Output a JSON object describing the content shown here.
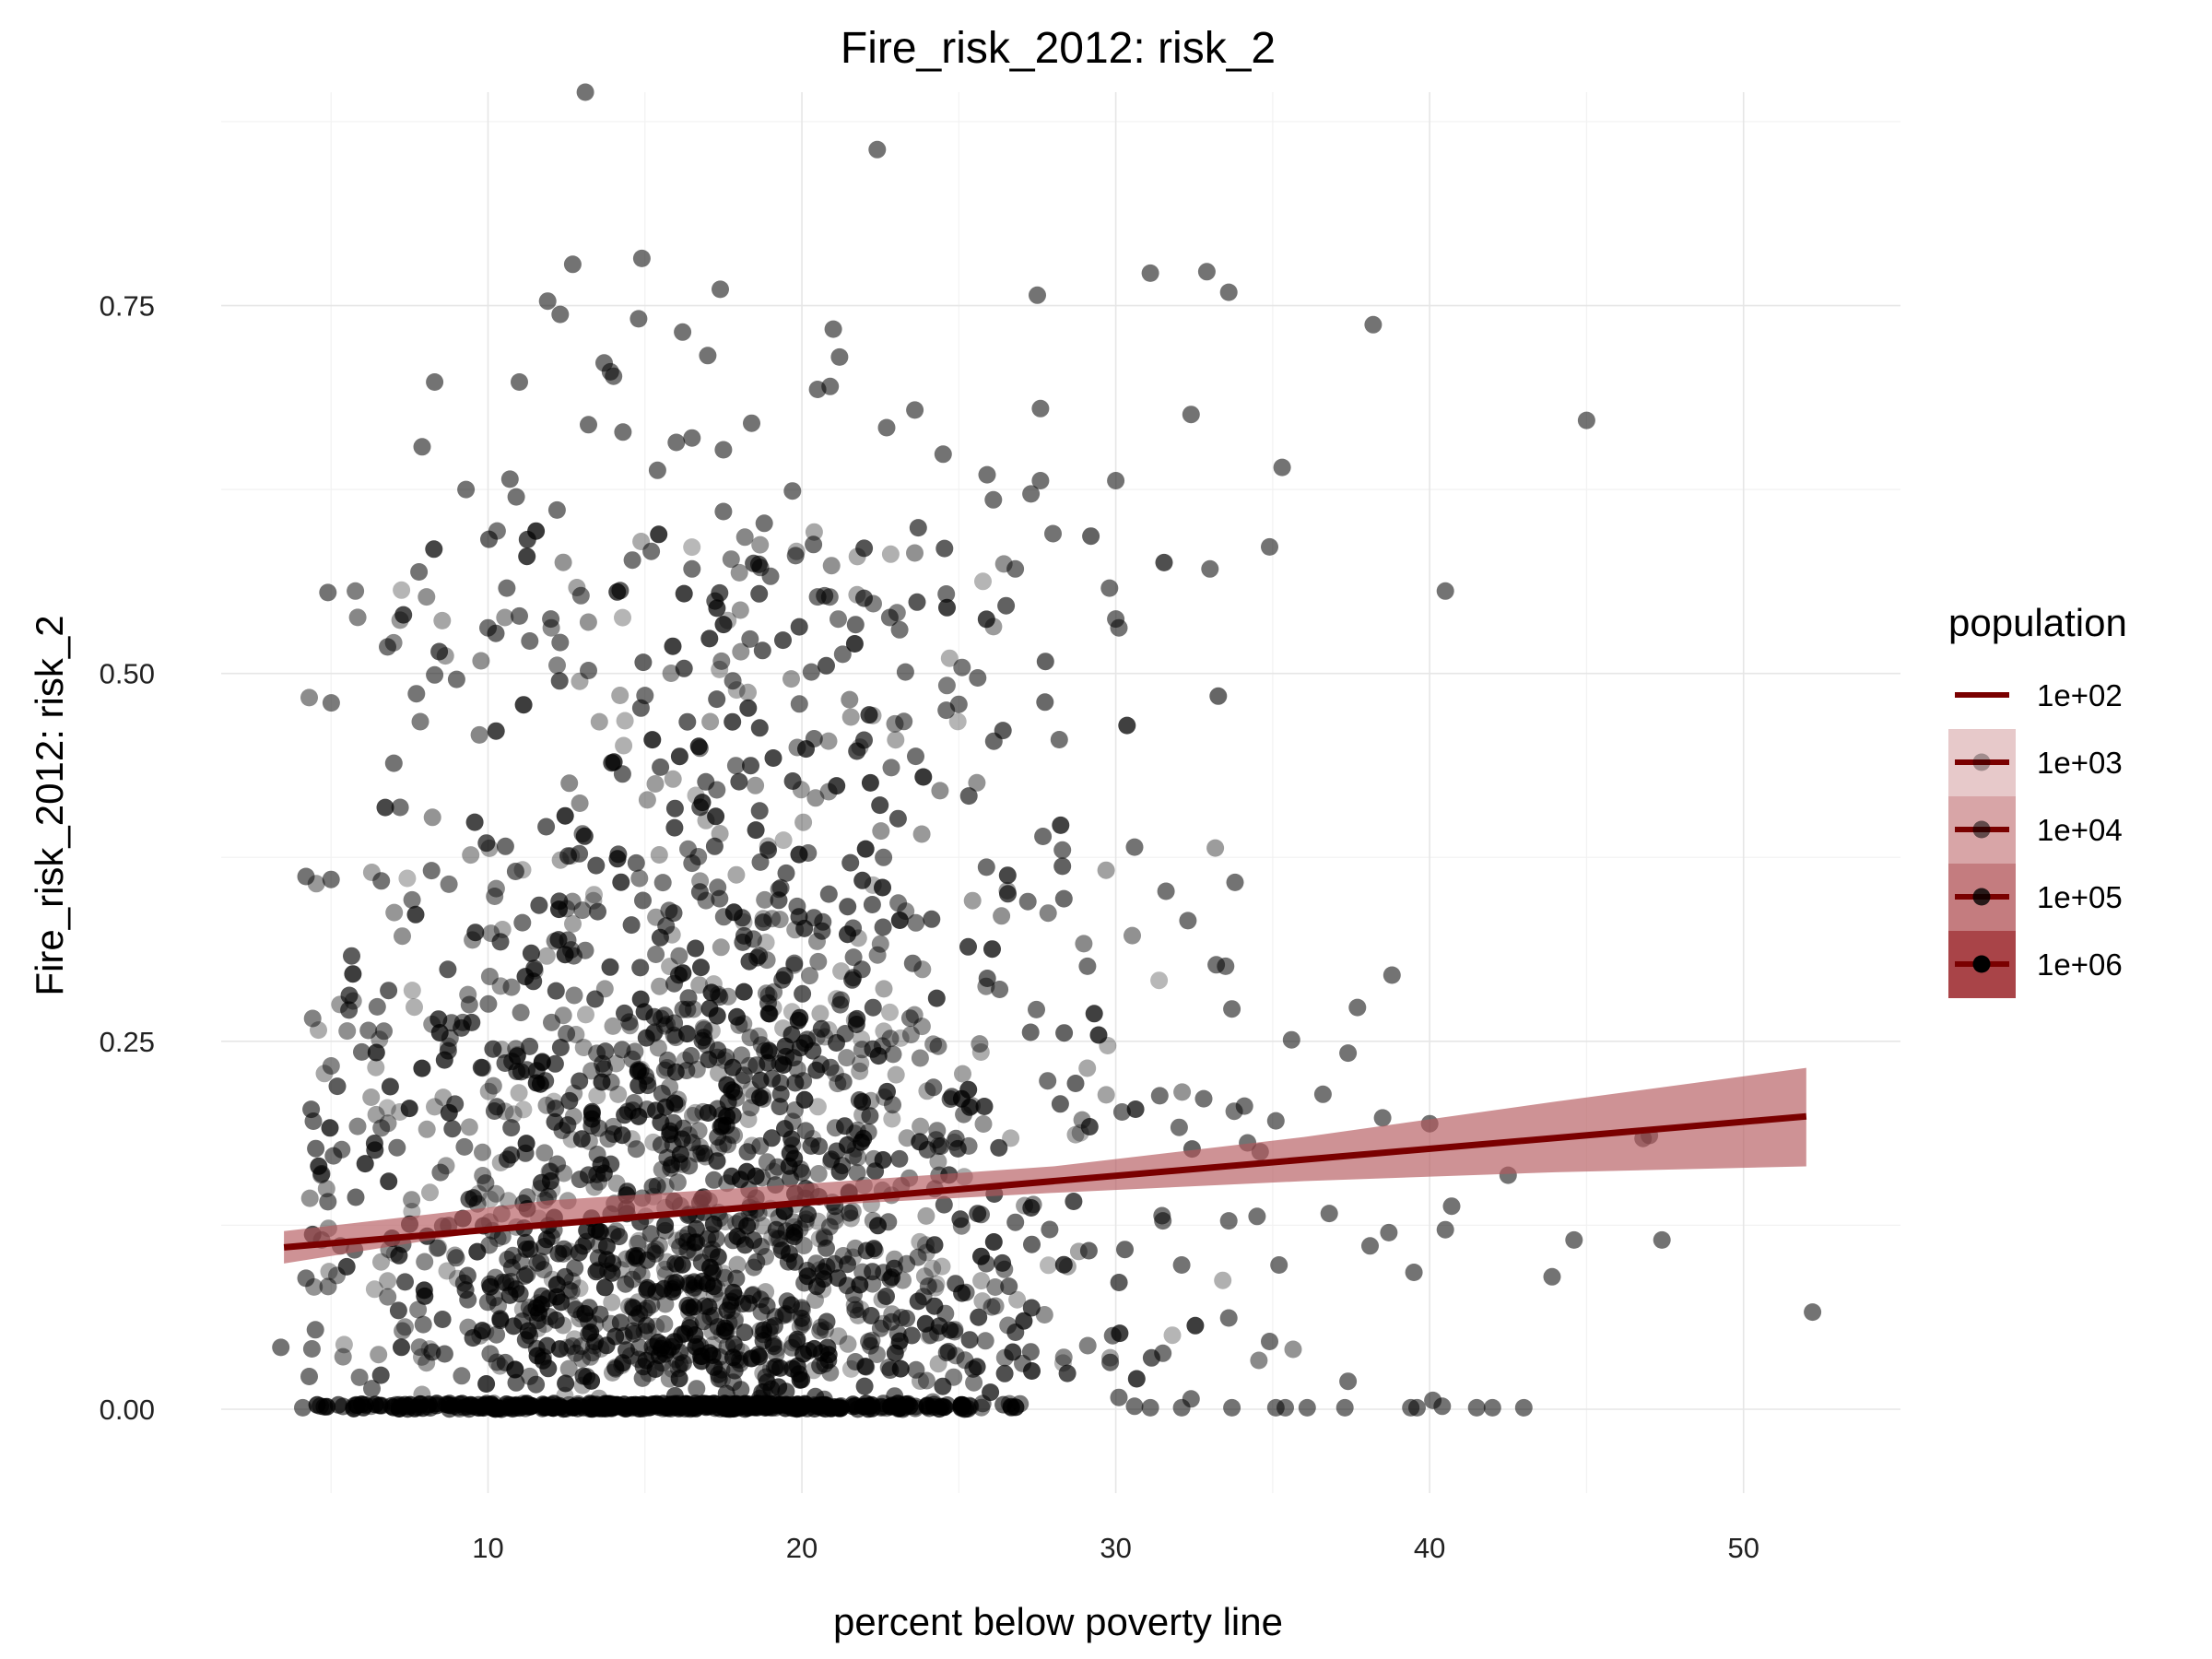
{
  "chart_data": {
    "type": "scatter",
    "title": "Fire_risk_2012: risk_2",
    "xlabel": "percent below poverty line",
    "ylabel": "Fire_risk_2012: risk_2",
    "xlim": [
      1.5,
      55
    ],
    "ylim": [
      -0.057,
      0.895
    ],
    "x_ticks": [
      10,
      20,
      30,
      40,
      50
    ],
    "x_tick_labels": [
      "10",
      "20",
      "30",
      "40",
      "50"
    ],
    "y_ticks": [
      0,
      0.25,
      0.5,
      0.75
    ],
    "y_tick_labels": [
      "0.00",
      "0.25",
      "0.50",
      "0.75"
    ],
    "grid": true,
    "legend": {
      "title": "population",
      "position": "right",
      "entries": [
        "1e+02",
        "1e+03",
        "1e+04",
        "1e+05",
        "1e+06"
      ]
    },
    "colors": {
      "points": "#000000",
      "fit_line": "#7a0000",
      "ribbon": "#b4585c"
    },
    "points_sample": [
      [
        13.1,
        0.895
      ],
      [
        22.4,
        0.856
      ],
      [
        12.7,
        0.778
      ],
      [
        14.9,
        0.782
      ],
      [
        17.4,
        0.761
      ],
      [
        27.5,
        0.757
      ],
      [
        31.1,
        0.772
      ],
      [
        32.9,
        0.773
      ],
      [
        33.6,
        0.759
      ],
      [
        38.2,
        0.737
      ],
      [
        11.9,
        0.753
      ],
      [
        12.3,
        0.744
      ],
      [
        14.8,
        0.741
      ],
      [
        16.2,
        0.732
      ],
      [
        17.0,
        0.716
      ],
      [
        21.0,
        0.734
      ],
      [
        21.2,
        0.715
      ],
      [
        13.7,
        0.711
      ],
      [
        13.9,
        0.705
      ],
      [
        14.0,
        0.702
      ],
      [
        8.3,
        0.698
      ],
      [
        11.0,
        0.698
      ],
      [
        20.5,
        0.693
      ],
      [
        20.9,
        0.695
      ],
      [
        22.7,
        0.667
      ],
      [
        23.6,
        0.679
      ],
      [
        27.6,
        0.68
      ],
      [
        32.4,
        0.676
      ],
      [
        45.0,
        0.672
      ],
      [
        13.2,
        0.669
      ],
      [
        14.3,
        0.664
      ],
      [
        16.5,
        0.66
      ],
      [
        16.0,
        0.657
      ],
      [
        18.4,
        0.67
      ],
      [
        7.9,
        0.654
      ],
      [
        17.5,
        0.652
      ],
      [
        24.5,
        0.649
      ],
      [
        35.3,
        0.64
      ],
      [
        12.2,
        0.611
      ],
      [
        9.3,
        0.625
      ],
      [
        10.7,
        0.632
      ],
      [
        10.9,
        0.62
      ],
      [
        15.4,
        0.638
      ],
      [
        19.7,
        0.624
      ],
      [
        25.9,
        0.635
      ],
      [
        26.1,
        0.618
      ],
      [
        27.3,
        0.622
      ],
      [
        27.6,
        0.631
      ],
      [
        30.0,
        0.631
      ],
      [
        17.5,
        0.61
      ],
      [
        15.2,
        0.583
      ],
      [
        19.8,
        0.58
      ],
      [
        18.8,
        0.602
      ],
      [
        28.0,
        0.595
      ],
      [
        34.9,
        0.586
      ],
      [
        7.8,
        0.569
      ],
      [
        14.6,
        0.577
      ],
      [
        16.5,
        0.571
      ],
      [
        19.0,
        0.566
      ],
      [
        26.8,
        0.571
      ],
      [
        33.0,
        0.571
      ],
      [
        4.9,
        0.555
      ],
      [
        10.6,
        0.558
      ],
      [
        20.5,
        0.552
      ],
      [
        29.8,
        0.558
      ],
      [
        40.5,
        0.556
      ],
      [
        24.6,
        0.554
      ],
      [
        10.0,
        0.531
      ],
      [
        11.0,
        0.539
      ],
      [
        12.0,
        0.537
      ],
      [
        22.8,
        0.538
      ],
      [
        30.0,
        0.537
      ],
      [
        30.1,
        0.531
      ],
      [
        6.8,
        0.518
      ],
      [
        8.3,
        0.499
      ],
      [
        9.0,
        0.496
      ],
      [
        12.3,
        0.521
      ],
      [
        13.2,
        0.502
      ],
      [
        15.0,
        0.485
      ],
      [
        17.8,
        0.495
      ],
      [
        20.3,
        0.501
      ],
      [
        21.3,
        0.513
      ],
      [
        23.3,
        0.501
      ],
      [
        25.6,
        0.497
      ],
      [
        24.6,
        0.475
      ],
      [
        25.0,
        0.479
      ],
      [
        28.2,
        0.455
      ],
      [
        4.2,
        0.362
      ],
      [
        5.0,
        0.36
      ],
      [
        6.6,
        0.359
      ],
      [
        7.0,
        0.439
      ],
      [
        7.2,
        0.409
      ],
      [
        8.2,
        0.366
      ],
      [
        16.5,
        0.371
      ],
      [
        20.2,
        0.378
      ],
      [
        22.6,
        0.375
      ],
      [
        28.3,
        0.38
      ],
      [
        30.6,
        0.382
      ],
      [
        31.6,
        0.352
      ],
      [
        33.8,
        0.358
      ],
      [
        27.2,
        0.345
      ],
      [
        29.1,
        0.301
      ],
      [
        32.3,
        0.332
      ],
      [
        33.2,
        0.302
      ],
      [
        33.5,
        0.301
      ],
      [
        33.7,
        0.272
      ],
      [
        35.6,
        0.251
      ],
      [
        37.7,
        0.273
      ],
      [
        38.8,
        0.295
      ],
      [
        37.4,
        0.242
      ],
      [
        30.2,
        0.202
      ],
      [
        31.4,
        0.213
      ],
      [
        32.8,
        0.211
      ],
      [
        34.1,
        0.206
      ],
      [
        35.1,
        0.196
      ],
      [
        36.6,
        0.214
      ],
      [
        38.5,
        0.198
      ],
      [
        40.0,
        0.194
      ],
      [
        46.8,
        0.184
      ],
      [
        47.0,
        0.186
      ],
      [
        42.5,
        0.159
      ],
      [
        34.2,
        0.181
      ],
      [
        34.6,
        0.175
      ],
      [
        40.7,
        0.138
      ],
      [
        40.5,
        0.122
      ],
      [
        36.8,
        0.133
      ],
      [
        34.5,
        0.131
      ],
      [
        33.6,
        0.128
      ],
      [
        38.7,
        0.12
      ],
      [
        38.1,
        0.111
      ],
      [
        39.5,
        0.093
      ],
      [
        43.9,
        0.09
      ],
      [
        44.6,
        0.115
      ],
      [
        47.4,
        0.115
      ],
      [
        35.2,
        0.098
      ],
      [
        32.1,
        0.098
      ],
      [
        31.5,
        0.128
      ],
      [
        33.6,
        0.062
      ],
      [
        34.9,
        0.046
      ],
      [
        37.4,
        0.019
      ],
      [
        31.5,
        0.038
      ],
      [
        29.9,
        0.05
      ],
      [
        52.2,
        0.066
      ],
      [
        3.4,
        0.042
      ],
      [
        4.5,
        0.054
      ],
      [
        4.2,
        0.089
      ],
      [
        4.7,
        0.115
      ],
      [
        4.7,
        0.16
      ],
      [
        5.3,
        0.111
      ],
      [
        4.9,
        0.141
      ],
      [
        5.8,
        0.003
      ],
      [
        4.1,
        0.001
      ],
      [
        6.3,
        0.014
      ],
      [
        30.1,
        0.008
      ],
      [
        30.6,
        0.002
      ],
      [
        31.1,
        0.001
      ],
      [
        32.1,
        0.001
      ],
      [
        32.4,
        0.007
      ],
      [
        33.7,
        0.001
      ],
      [
        35.1,
        0.001
      ],
      [
        35.4,
        0.001
      ],
      [
        36.1,
        0.001
      ],
      [
        37.3,
        0.001
      ],
      [
        39.4,
        0.001
      ],
      [
        40.1,
        0.006
      ],
      [
        40.4,
        0.002
      ],
      [
        41.5,
        0.001
      ],
      [
        42.0,
        0.001
      ],
      [
        43.0,
        0.001
      ],
      [
        39.6,
        0.001
      ]
    ],
    "fit_line": {
      "x": [
        3.5,
        52.0
      ],
      "y": [
        0.11,
        0.199
      ]
    },
    "ribbon": {
      "x": [
        3.5,
        12.0,
        20.0,
        28.0,
        36.0,
        44.0,
        52.0
      ],
      "lower": [
        0.099,
        0.128,
        0.138,
        0.147,
        0.155,
        0.161,
        0.165
      ],
      "upper": [
        0.121,
        0.142,
        0.153,
        0.165,
        0.185,
        0.209,
        0.232
      ]
    }
  }
}
